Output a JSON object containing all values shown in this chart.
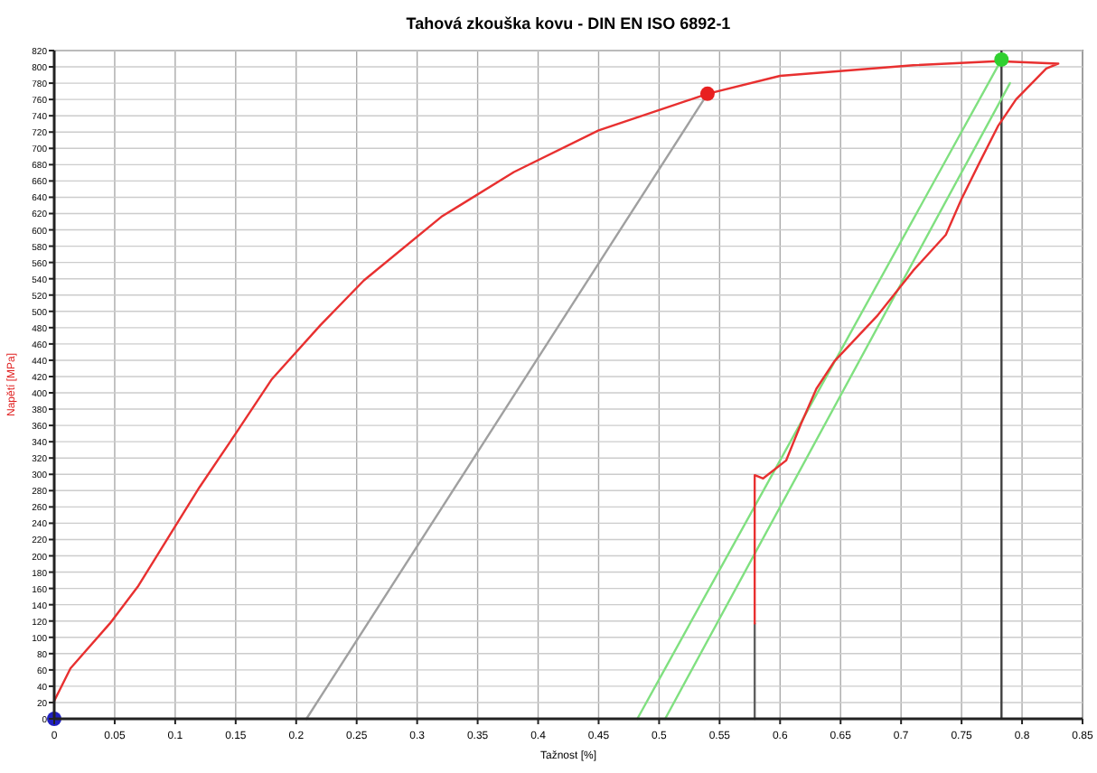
{
  "chart_data": {
    "type": "line",
    "title": "Tahová zkouška kovu - DIN EN ISO 6892-1",
    "xlabel": "Tažnost [%]",
    "ylabel": "Napětí [MPa]",
    "xlim": [
      0,
      0.85
    ],
    "ylim": [
      0,
      820
    ],
    "xticks": [
      0,
      0.05,
      0.1,
      0.15,
      0.2,
      0.25,
      0.3,
      0.35,
      0.4,
      0.45,
      0.5,
      0.55,
      0.6,
      0.65,
      0.7,
      0.75,
      0.8,
      0.85
    ],
    "yticks": [
      0,
      20,
      40,
      60,
      80,
      100,
      120,
      140,
      160,
      180,
      200,
      220,
      240,
      260,
      280,
      300,
      320,
      340,
      360,
      380,
      400,
      420,
      440,
      460,
      480,
      500,
      520,
      540,
      560,
      580,
      600,
      620,
      640,
      660,
      680,
      700,
      720,
      740,
      760,
      780,
      800,
      820
    ],
    "grid": true,
    "marker": "none",
    "ref_lines": [
      {
        "axis": "x",
        "value": 0.783,
        "color": "#404040"
      }
    ],
    "series": [
      {
        "color": "#a0a0a0",
        "x": [
          0.2085,
          0.54
        ],
        "values": [
          0,
          767
        ]
      },
      {
        "type": "line",
        "color": "#80e080",
        "x": [
          0.482,
          0.783
        ],
        "values": [
          0,
          809
        ]
      },
      {
        "type": "line",
        "color": "#80e080",
        "x": [
          0.505,
          0.79
        ],
        "values": [
          0,
          780
        ]
      },
      {
        "type": "line",
        "color": "#606060",
        "x": [
          0.579,
          0.579
        ],
        "values": [
          0,
          117
        ]
      },
      {
        "type": "line",
        "color": "#e83030",
        "x": [
          0,
          0.0135,
          0.046,
          0.069,
          0.092,
          0.12,
          0.15,
          0.18,
          0.22,
          0.256,
          0.32,
          0.38,
          0.45,
          0.54,
          0.6,
          0.71,
          0.78,
          0.83,
          0.82,
          0.795,
          0.78,
          0.765,
          0.75,
          0.737,
          0.71,
          0.68,
          0.645,
          0.63,
          0.617,
          0.605,
          0.586,
          0.579,
          0.579
        ],
        "values": [
          22,
          62,
          117,
          162,
          217,
          284,
          350,
          417,
          483,
          538,
          616,
          671,
          722,
          767,
          789,
          802,
          807,
          804,
          798,
          760,
          727,
          683,
          638,
          594,
          550,
          494,
          439,
          405,
          361,
          317,
          295,
          299,
          117
        ]
      },
      {
        "type": "scatter",
        "marker": "circle",
        "colors": [
          "#2020c0",
          "#e82020",
          "#30d030"
        ],
        "x": [
          0,
          0.54,
          0.783
        ],
        "values": [
          0,
          767,
          809
        ]
      }
    ]
  }
}
